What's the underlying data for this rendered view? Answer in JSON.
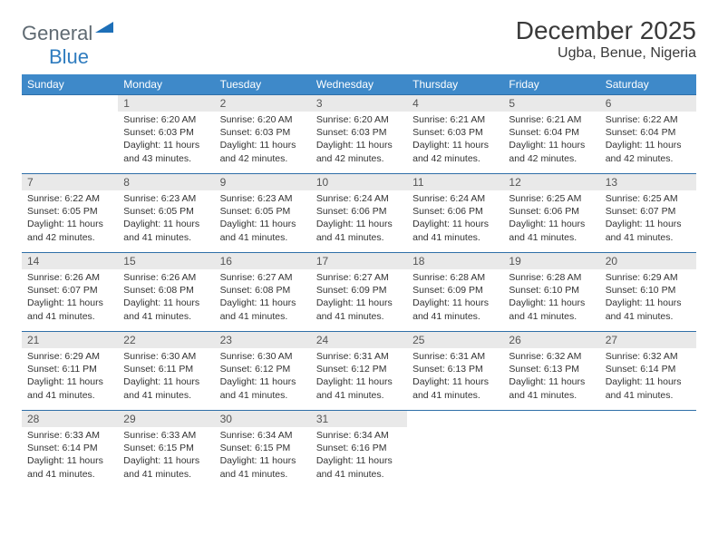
{
  "logo": {
    "text1": "General",
    "text2": "Blue"
  },
  "title": "December 2025",
  "location": "Ugba, Benue, Nigeria",
  "colors": {
    "header_bg": "#3e89c9",
    "header_text": "#ffffff",
    "daynum_bg": "#e9e9e9",
    "row_border": "#2f6fa8",
    "logo_gray": "#5f6a72",
    "logo_blue": "#2f7cbf",
    "triangle_blue": "#1d6fb8"
  },
  "weekdays": [
    "Sunday",
    "Monday",
    "Tuesday",
    "Wednesday",
    "Thursday",
    "Friday",
    "Saturday"
  ],
  "grid": [
    [
      {
        "empty": true
      },
      {
        "day": "1",
        "sunrise": "6:20 AM",
        "sunset": "6:03 PM",
        "daylight": "11 hours and 43 minutes."
      },
      {
        "day": "2",
        "sunrise": "6:20 AM",
        "sunset": "6:03 PM",
        "daylight": "11 hours and 42 minutes."
      },
      {
        "day": "3",
        "sunrise": "6:20 AM",
        "sunset": "6:03 PM",
        "daylight": "11 hours and 42 minutes."
      },
      {
        "day": "4",
        "sunrise": "6:21 AM",
        "sunset": "6:03 PM",
        "daylight": "11 hours and 42 minutes."
      },
      {
        "day": "5",
        "sunrise": "6:21 AM",
        "sunset": "6:04 PM",
        "daylight": "11 hours and 42 minutes."
      },
      {
        "day": "6",
        "sunrise": "6:22 AM",
        "sunset": "6:04 PM",
        "daylight": "11 hours and 42 minutes."
      }
    ],
    [
      {
        "day": "7",
        "sunrise": "6:22 AM",
        "sunset": "6:05 PM",
        "daylight": "11 hours and 42 minutes."
      },
      {
        "day": "8",
        "sunrise": "6:23 AM",
        "sunset": "6:05 PM",
        "daylight": "11 hours and 41 minutes."
      },
      {
        "day": "9",
        "sunrise": "6:23 AM",
        "sunset": "6:05 PM",
        "daylight": "11 hours and 41 minutes."
      },
      {
        "day": "10",
        "sunrise": "6:24 AM",
        "sunset": "6:06 PM",
        "daylight": "11 hours and 41 minutes."
      },
      {
        "day": "11",
        "sunrise": "6:24 AM",
        "sunset": "6:06 PM",
        "daylight": "11 hours and 41 minutes."
      },
      {
        "day": "12",
        "sunrise": "6:25 AM",
        "sunset": "6:06 PM",
        "daylight": "11 hours and 41 minutes."
      },
      {
        "day": "13",
        "sunrise": "6:25 AM",
        "sunset": "6:07 PM",
        "daylight": "11 hours and 41 minutes."
      }
    ],
    [
      {
        "day": "14",
        "sunrise": "6:26 AM",
        "sunset": "6:07 PM",
        "daylight": "11 hours and 41 minutes."
      },
      {
        "day": "15",
        "sunrise": "6:26 AM",
        "sunset": "6:08 PM",
        "daylight": "11 hours and 41 minutes."
      },
      {
        "day": "16",
        "sunrise": "6:27 AM",
        "sunset": "6:08 PM",
        "daylight": "11 hours and 41 minutes."
      },
      {
        "day": "17",
        "sunrise": "6:27 AM",
        "sunset": "6:09 PM",
        "daylight": "11 hours and 41 minutes."
      },
      {
        "day": "18",
        "sunrise": "6:28 AM",
        "sunset": "6:09 PM",
        "daylight": "11 hours and 41 minutes."
      },
      {
        "day": "19",
        "sunrise": "6:28 AM",
        "sunset": "6:10 PM",
        "daylight": "11 hours and 41 minutes."
      },
      {
        "day": "20",
        "sunrise": "6:29 AM",
        "sunset": "6:10 PM",
        "daylight": "11 hours and 41 minutes."
      }
    ],
    [
      {
        "day": "21",
        "sunrise": "6:29 AM",
        "sunset": "6:11 PM",
        "daylight": "11 hours and 41 minutes."
      },
      {
        "day": "22",
        "sunrise": "6:30 AM",
        "sunset": "6:11 PM",
        "daylight": "11 hours and 41 minutes."
      },
      {
        "day": "23",
        "sunrise": "6:30 AM",
        "sunset": "6:12 PM",
        "daylight": "11 hours and 41 minutes."
      },
      {
        "day": "24",
        "sunrise": "6:31 AM",
        "sunset": "6:12 PM",
        "daylight": "11 hours and 41 minutes."
      },
      {
        "day": "25",
        "sunrise": "6:31 AM",
        "sunset": "6:13 PM",
        "daylight": "11 hours and 41 minutes."
      },
      {
        "day": "26",
        "sunrise": "6:32 AM",
        "sunset": "6:13 PM",
        "daylight": "11 hours and 41 minutes."
      },
      {
        "day": "27",
        "sunrise": "6:32 AM",
        "sunset": "6:14 PM",
        "daylight": "11 hours and 41 minutes."
      }
    ],
    [
      {
        "day": "28",
        "sunrise": "6:33 AM",
        "sunset": "6:14 PM",
        "daylight": "11 hours and 41 minutes."
      },
      {
        "day": "29",
        "sunrise": "6:33 AM",
        "sunset": "6:15 PM",
        "daylight": "11 hours and 41 minutes."
      },
      {
        "day": "30",
        "sunrise": "6:34 AM",
        "sunset": "6:15 PM",
        "daylight": "11 hours and 41 minutes."
      },
      {
        "day": "31",
        "sunrise": "6:34 AM",
        "sunset": "6:16 PM",
        "daylight": "11 hours and 41 minutes."
      },
      {
        "empty": true
      },
      {
        "empty": true
      },
      {
        "empty": true
      }
    ]
  ],
  "labels": {
    "sunrise_prefix": "Sunrise: ",
    "sunset_prefix": "Sunset: ",
    "daylight_prefix": "Daylight: "
  }
}
